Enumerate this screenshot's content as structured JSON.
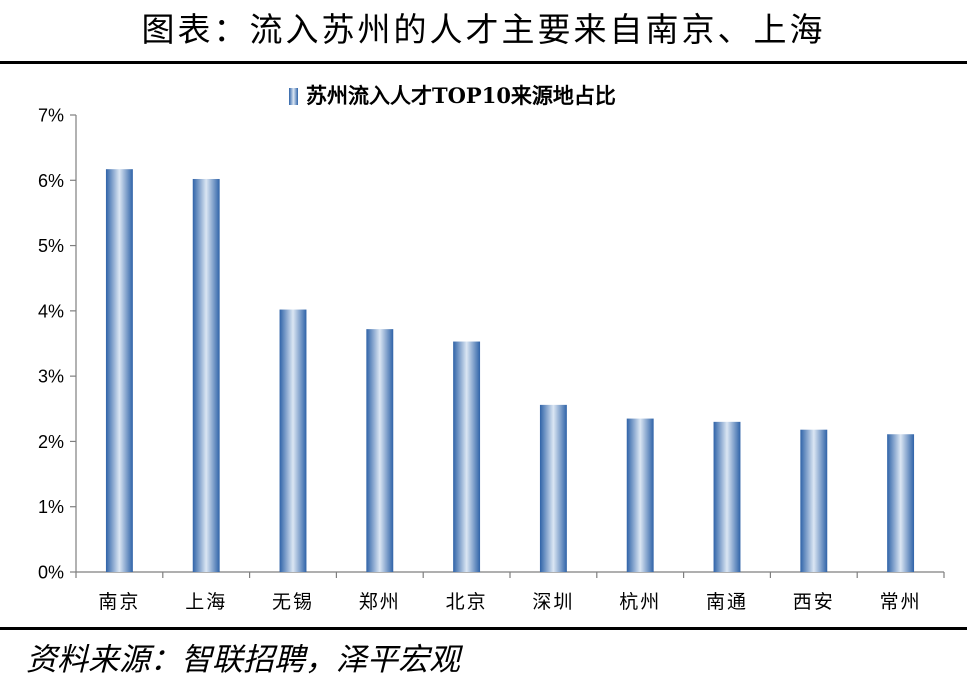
{
  "header": {
    "title": "图表：流入苏州的人才主要来自南京、上海"
  },
  "footer": {
    "source": "资料来源：智联招聘，泽平宏观"
  },
  "colors": {
    "bar_dark": "#2f63a8",
    "bar_light": "#dbe6f3",
    "axis": "#7f7f7f",
    "rule": "#000000"
  },
  "chart_data": {
    "type": "bar",
    "categories": [
      "南京",
      "上海",
      "无锡",
      "郑州",
      "北京",
      "深圳",
      "杭州",
      "南通",
      "西安",
      "常州"
    ],
    "series": [
      {
        "name": "苏州流入人才TOP10来源地占比",
        "values": [
          6.17,
          6.02,
          4.02,
          3.72,
          3.53,
          2.56,
          2.35,
          2.3,
          2.18,
          2.11
        ]
      }
    ],
    "yticks": [
      "0%",
      "1%",
      "2%",
      "3%",
      "4%",
      "5%",
      "6%",
      "7%"
    ],
    "ylim": [
      0,
      7
    ],
    "ylabel": "",
    "xlabel": "",
    "legend_position": "top-center",
    "grid": false
  }
}
